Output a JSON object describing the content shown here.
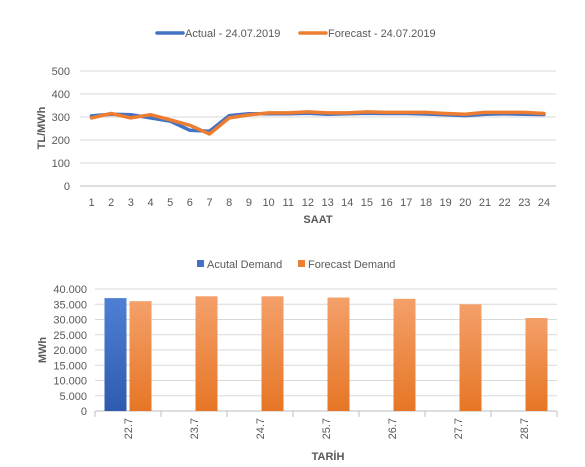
{
  "chart_data": [
    {
      "type": "line",
      "xlabel": "SAAT",
      "ylabel": "TL/MWh",
      "ylim": [
        0,
        500
      ],
      "yticks": [
        0,
        100,
        200,
        300,
        400,
        500
      ],
      "grid": true,
      "legend_position": "top",
      "x": [
        1,
        2,
        3,
        4,
        5,
        6,
        7,
        8,
        9,
        10,
        11,
        12,
        13,
        14,
        15,
        16,
        17,
        18,
        19,
        20,
        21,
        22,
        23,
        24
      ],
      "series": [
        {
          "name": "Actual - 24.07.2019",
          "color": "#4472C4",
          "values": [
            305,
            312,
            310,
            296,
            282,
            242,
            238,
            306,
            314,
            314,
            314,
            316,
            312,
            314,
            316,
            315,
            315,
            313,
            310,
            306,
            312,
            314,
            312,
            311
          ]
        },
        {
          "name": "Forecast - 24.07.2019",
          "color": "#ED7D31",
          "values": [
            296,
            315,
            296,
            310,
            288,
            264,
            226,
            296,
            309,
            318,
            318,
            322,
            318,
            318,
            322,
            320,
            320,
            320,
            315,
            312,
            320,
            320,
            320,
            315
          ]
        }
      ]
    },
    {
      "type": "bar",
      "xlabel": "TARİH",
      "ylabel": "MWh",
      "ylim": [
        0,
        40000
      ],
      "ytick_labels": [
        "0",
        "5.000",
        "10.000",
        "15.000",
        "20.000",
        "25.000",
        "30.000",
        "35.000",
        "40.000"
      ],
      "grid": true,
      "legend_position": "top",
      "categories": [
        "22.7",
        "23.7",
        "24.7",
        "25.7",
        "26.7",
        "27.7",
        "28.7"
      ],
      "series": [
        {
          "name": "Acutal Demand",
          "color": "#4472C4",
          "values": [
            37000,
            null,
            null,
            null,
            null,
            null,
            null
          ]
        },
        {
          "name": "Forecast Demand",
          "color": "#ED7D31",
          "values": [
            36000,
            37600,
            37600,
            37200,
            36800,
            35000,
            30500
          ]
        }
      ]
    }
  ]
}
